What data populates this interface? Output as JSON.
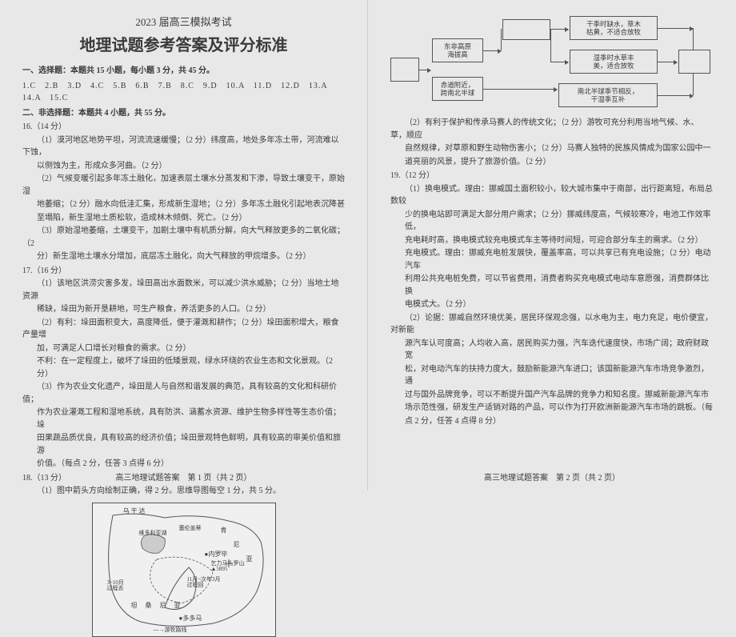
{
  "exam_header": "2023 届高三模拟考试",
  "main_title": "地理试题参考答案及评分标准",
  "sec1_head": "一、选择题：本题共 15 小题，每小题 3 分，共 45 分。",
  "mc_answers": "1.C　2.B　3.D　4.C　5.B　6.B　7.B　8.C　9.D　10.A　11.D　12.D　13.A　14.A　15.C",
  "sec2_head": "二、非选择题：本题共 4 小题，共 55 分。",
  "q16": {
    "head": "16.（14 分）",
    "p1a": "（1）漠河地区地势平坦，河流流速缓慢；（2 分）纬度高，地处多年冻土带，河流难以下蚀，",
    "p1b": "以侧蚀为主，形成众多河曲。（2 分）",
    "p2a": "（2）气候变暖引起多年冻土融化，加速表层土壤水分蒸发和下渗，导致土壤变干，原始湿",
    "p2b": "地萎缩；（2 分）融水向低洼汇集，形成新生湿地；（2 分）多年冻土融化引起地表沉降甚",
    "p2c": "至塌陷，新生湿地土质松软，造成林木倾倒、死亡。（2 分）",
    "p3a": "（3）原始湿地萎缩，土壤变干，加剧土壤中有机质分解，向大气释放更多的二氧化碳；（2",
    "p3b": "分）新生湿地土壤水分增加，底层冻土融化，向大气释放的甲烷增多。（2 分）"
  },
  "q17": {
    "head": "17.（16 分）",
    "p1a": "（1）该地区洪涝灾害多发，垛田高出水面数米，可以减少洪水威胁；（2 分）当地土地资源",
    "p1b": "稀缺，垛田为新开垦耕地，可生产粮食，养活更多的人口。（2 分）",
    "p2a": "（2）有利：垛田面积变大，高度降低，便于灌溉和耕作；（2 分）垛田面积增大，粮食产量增",
    "p2b": "加，可满足人口增长对粮食的需求。（2 分）",
    "p2c": "不利：在一定程度上，破坏了垛田的低矮景观，绿水环绕的农业生态和文化景观。（2 分）",
    "p3a": "（3）作为农业文化遗产，垛田是人与自然和谐发展的典范，具有较高的文化和科研价值；",
    "p3b": "作为农业灌溉工程和湿地系统，具有防洪、涵蓄水资源、维护生物多样性等生态价值；垛",
    "p3c": "田果蔬品质优良，具有较高的经济价值；垛田景观特色鲜明，具有较高的审美价值和旅游",
    "p3d": "价值。（每点 2 分，任答 3 点得 6 分）"
  },
  "q18": {
    "head": "18.（13 分）",
    "p1": "（1）图中箭头方向绘制正确，得 2 分。思维导图每空 1 分，共 5 分。"
  },
  "q18r": {
    "p2a": "（2）有利于保护和传承马赛人的传统文化；（2 分）游牧可充分利用当地气候、水、草，顺应",
    "p2b": "自然规律，对草原和野生动物伤害小；（2 分）马赛人独特的民族风情成为国家公园中一",
    "p2c": "道亮丽的风景，提升了旅游价值。（2 分）"
  },
  "q19": {
    "head": "19.（12 分）",
    "p1a": "（1）换电模式。理由：挪威国土面积较小，较大城市集中于南部，出行距离短，布局总数较",
    "p1b": "少的换电站即可满足大部分用户需求；（2 分）挪威纬度高，气候较寒冷，电池工作效率低，",
    "p1c": "充电耗时高，换电模式较充电模式车主等待时间短，可迎合部分车主的需求。（2 分）",
    "p1d": "充电模式。理由：挪威充电桩发展快，覆盖率高，可以共享已有充电设施；（2 分）电动汽车",
    "p1e": "利用公共充电桩免费，可以节省费用，消费者购买充电模式电动车意愿强，消费群体比换",
    "p1f": "电模式大。（2 分）",
    "p2a": "（2）论据：挪威自然环境优美，居民环保观念强，以水电为主，电力充足，电价便宜，对新能",
    "p2b": "源汽车认可度高；人均收入高，居民购买力强，汽车迭代速度快，市场广阔；政府财政宽",
    "p2c": "松，对电动汽车的扶持力度大，鼓励新能源汽车进口；该国新能源汽车市场竞争激烈，通",
    "p2d": "过与国外品牌竞争，可以不断提升国产汽车品牌的竞争力和知名度。挪威新能源汽车市",
    "p2e": "场示范性强，研发生产适销对路的产品，可以作为打开欧洲新能源汽车市场的跳板。（每",
    "p2f": "点 2 分，任答 4 点得 8 分）"
  },
  "flow": {
    "b1": "东非高原\\n海拔高",
    "b2": "赤道附近，\\n跨南北半球",
    "b3": "干季时缺水，草木\\n枯黄，不适合放牧",
    "b4": "湿季时水草丰\\n美，适合放牧",
    "b5": "南北半球季节相反，\\n干湿季互补"
  },
  "map": {
    "l1": "乌 干 达",
    "l2": "肯",
    "l3": "尼",
    "l4": "亚",
    "l5": "●内罗毕",
    "l6": "坦  桑  尼  亚",
    "l7": "●多多马",
    "l8": "乞力马扎罗山\\n▲5895",
    "l9": "维多利亚湖",
    "l10": "塞伦盖蒂",
    "l11": "3~10月\\n过程去",
    "l12": "11月~次年3月\\n过程回",
    "l13": "---→游牧路线"
  },
  "footer_left": "高三地理试题答案　第 1 页（共 2 页）",
  "footer_right": "高三地理试题答案　第 2 页（共 2 页）"
}
